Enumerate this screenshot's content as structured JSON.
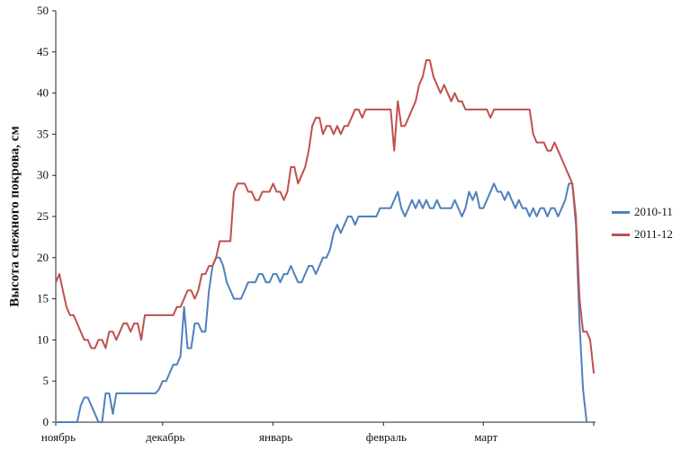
{
  "chart_data": {
    "type": "line",
    "title": "",
    "xlabel": "",
    "ylabel": "Высота снежного покрова, см",
    "ylim": [
      0,
      50
    ],
    "ytick_step": 5,
    "y_tick_labels": [
      "0",
      "5",
      "10",
      "15",
      "20",
      "25",
      "30",
      "35",
      "40",
      "45",
      "50"
    ],
    "grid": false,
    "legend_position": "right",
    "x_categories": [
      "ноябрь",
      "декабрь",
      "январь",
      "февраль",
      "март"
    ],
    "month_start_indices": [
      0,
      30,
      61,
      92,
      120
    ],
    "n_points": 152,
    "axis_color": "#262626",
    "series": [
      {
        "name": "2010-11",
        "color": "#4F81BD",
        "values": [
          0,
          0,
          0,
          0,
          0,
          0,
          0,
          2,
          3,
          3,
          2,
          1,
          0,
          0,
          3.5,
          3.5,
          1,
          3.5,
          3.5,
          3.5,
          3.5,
          3.5,
          3.5,
          3.5,
          3.5,
          3.5,
          3.5,
          3.5,
          3.5,
          4,
          5,
          5,
          6,
          7,
          7,
          8,
          14,
          9,
          9,
          12,
          12,
          11,
          11,
          16,
          19,
          20,
          20,
          19,
          17,
          16,
          15,
          15,
          15,
          16,
          17,
          17,
          17,
          18,
          18,
          17,
          17,
          18,
          18,
          17,
          18,
          18,
          19,
          18,
          17,
          17,
          18,
          19,
          19,
          18,
          19,
          20,
          20,
          21,
          23,
          24,
          23,
          24,
          25,
          25,
          24,
          25,
          25,
          25,
          25,
          25,
          25,
          26,
          26,
          26,
          26,
          27,
          28,
          26,
          25,
          26,
          27,
          26,
          27,
          26,
          27,
          26,
          26,
          27,
          26,
          26,
          26,
          26,
          27,
          26,
          25,
          26,
          28,
          27,
          28,
          26,
          26,
          27,
          28,
          29,
          28,
          28,
          27,
          28,
          27,
          26,
          27,
          26,
          26,
          25,
          26,
          25,
          26,
          26,
          25,
          26,
          26,
          25,
          26,
          27,
          29,
          29,
          24,
          12,
          4,
          0,
          null,
          null
        ]
      },
      {
        "name": "2011-12",
        "color": "#C0504D",
        "values": [
          17,
          18,
          16,
          14,
          13,
          13,
          12,
          11,
          10,
          10,
          9,
          9,
          10,
          10,
          9,
          11,
          11,
          10,
          11,
          12,
          12,
          11,
          12,
          12,
          10,
          13,
          13,
          13,
          13,
          13,
          13,
          13,
          13,
          13,
          14,
          14,
          15,
          16,
          16,
          15,
          16,
          18,
          18,
          19,
          19,
          20,
          22,
          22,
          22,
          22,
          28,
          29,
          29,
          29,
          28,
          28,
          27,
          27,
          28,
          28,
          28,
          29,
          28,
          28,
          27,
          28,
          31,
          31,
          29,
          30,
          31,
          33,
          36,
          37,
          37,
          35,
          36,
          36,
          35,
          36,
          35,
          36,
          36,
          37,
          38,
          38,
          37,
          38,
          38,
          38,
          38,
          38,
          38,
          38,
          38,
          33,
          39,
          36,
          36,
          37,
          38,
          39,
          41,
          42,
          44,
          44,
          42,
          41,
          40,
          41,
          40,
          39,
          40,
          39,
          39,
          38,
          38,
          38,
          38,
          38,
          38,
          38,
          37,
          38,
          38,
          38,
          38,
          38,
          38,
          38,
          38,
          38,
          38,
          38,
          35,
          34,
          34,
          34,
          33,
          33,
          34,
          33,
          32,
          31,
          30,
          29,
          25,
          15,
          11,
          11,
          10,
          6
        ]
      }
    ]
  }
}
